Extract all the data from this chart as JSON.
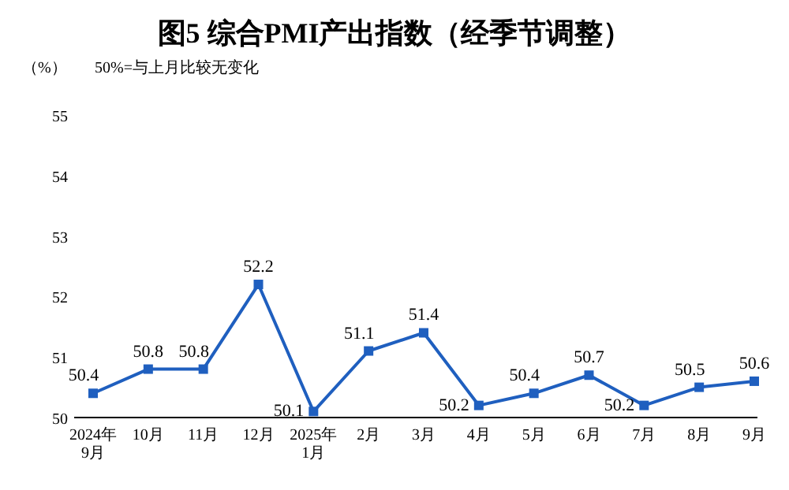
{
  "chart_data": {
    "type": "line",
    "title": "图5  综合PMI产出指数（经季节调整）",
    "annotations": [
      "（%）",
      "50%=与上月比较无变化"
    ],
    "categories": [
      "2024年\n9月",
      "10月",
      "11月",
      "12月",
      "2025年\n1月",
      "2月",
      "3月",
      "4月",
      "5月",
      "6月",
      "7月",
      "8月",
      "9月"
    ],
    "series": [
      {
        "color": "#1f5fbf",
        "values": [
          50.4,
          50.8,
          50.8,
          52.2,
          50.1,
          51.1,
          51.4,
          50.2,
          50.4,
          50.7,
          50.2,
          50.5,
          50.6
        ]
      }
    ],
    "ylim": [
      50,
      55
    ],
    "yticks": [
      50,
      51,
      52,
      53,
      54,
      55
    ],
    "grid": false,
    "marker": "square",
    "line_style": "solid",
    "data_labels": true
  }
}
